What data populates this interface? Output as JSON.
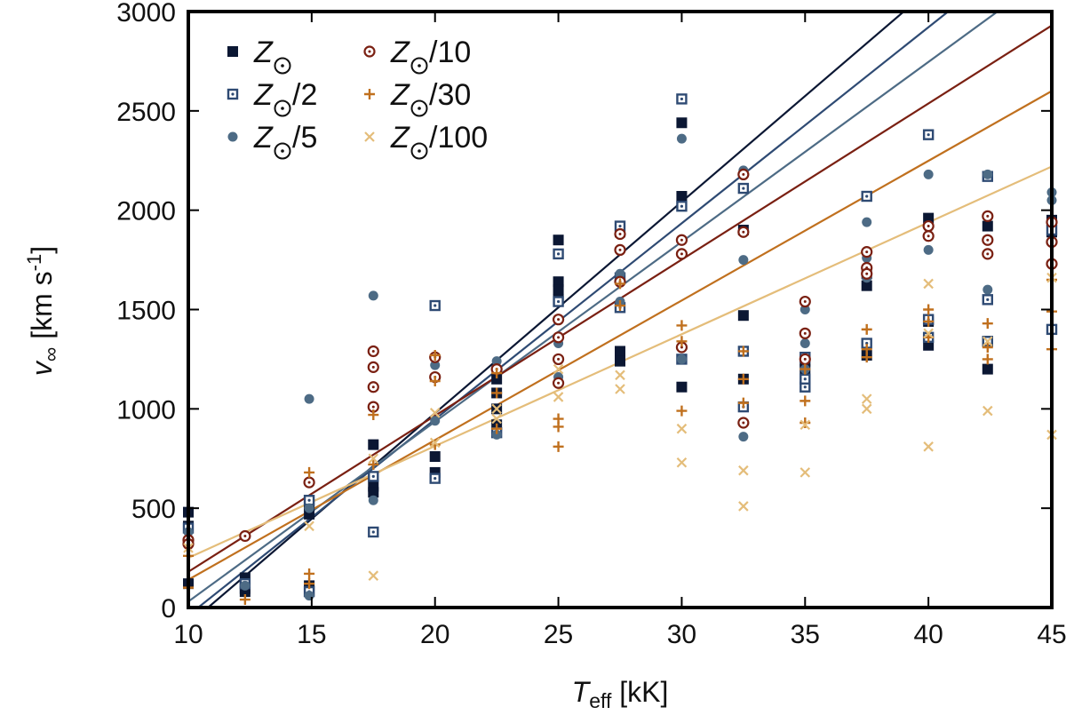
{
  "chart_data": {
    "type": "scatter",
    "title": "",
    "xlabel": {
      "main": "T",
      "sub": "eff",
      "unit": " [kK]"
    },
    "ylabel": {
      "main": "v",
      "sub": "∞",
      "unit": " [km s",
      "sup": "-1",
      "close": "]"
    },
    "xlim": [
      10,
      45
    ],
    "ylim": [
      0,
      3000
    ],
    "xticks": [
      10,
      15,
      20,
      25,
      30,
      35,
      40,
      45
    ],
    "yticks": [
      0,
      500,
      1000,
      1500,
      2000,
      2500,
      3000
    ],
    "grid": false,
    "legend_position": "top-left",
    "series": [
      {
        "name": "Z☉",
        "legend_main": "Z",
        "legend_suffix": "",
        "color": "#0b1733",
        "marker": "filled-square",
        "fit": {
          "x0": 10.8,
          "x1": 39.0,
          "y0": 0,
          "y1": 3000
        },
        "points": [
          [
            10,
            480
          ],
          [
            10,
            410
          ],
          [
            10,
            120
          ],
          [
            12.3,
            150
          ],
          [
            12.3,
            95
          ],
          [
            12.3,
            80
          ],
          [
            14.9,
            520
          ],
          [
            14.9,
            470
          ],
          [
            14.9,
            110
          ],
          [
            14.9,
            85
          ],
          [
            17.5,
            820
          ],
          [
            17.5,
            610
          ],
          [
            17.5,
            580
          ],
          [
            20,
            760
          ],
          [
            20,
            680
          ],
          [
            22.5,
            1150
          ],
          [
            22.5,
            1080
          ],
          [
            22.5,
            1000
          ],
          [
            22.5,
            920
          ],
          [
            25,
            1850
          ],
          [
            25,
            1640
          ],
          [
            25,
            1600
          ],
          [
            25,
            1550
          ],
          [
            27.5,
            1890
          ],
          [
            27.5,
            1290
          ],
          [
            27.5,
            1240
          ],
          [
            30,
            2440
          ],
          [
            30,
            2070
          ],
          [
            30,
            1110
          ],
          [
            32.5,
            1900
          ],
          [
            32.5,
            1470
          ],
          [
            32.5,
            1150
          ],
          [
            35,
            1240
          ],
          [
            35,
            1200
          ],
          [
            37.5,
            1680
          ],
          [
            37.5,
            1620
          ],
          [
            37.5,
            1270
          ],
          [
            40,
            1960
          ],
          [
            40,
            1440
          ],
          [
            40,
            1320
          ],
          [
            42.4,
            1920
          ],
          [
            42.4,
            1340
          ],
          [
            42.4,
            1200
          ],
          [
            45,
            1950
          ],
          [
            45,
            1890
          ]
        ]
      },
      {
        "name": "Z☉/2",
        "legend_main": "Z",
        "legend_suffix": "/2",
        "color": "#2e4a73",
        "marker": "dotted-square",
        "fit": {
          "x0": 10.4,
          "x1": 40.8,
          "y0": 0,
          "y1": 3000
        },
        "points": [
          [
            10,
            400
          ],
          [
            12.3,
            120
          ],
          [
            14.9,
            540
          ],
          [
            14.9,
            80
          ],
          [
            17.5,
            380
          ],
          [
            17.5,
            660
          ],
          [
            20,
            1520
          ],
          [
            20,
            650
          ],
          [
            22.5,
            880
          ],
          [
            25,
            1780
          ],
          [
            25,
            1540
          ],
          [
            27.5,
            1920
          ],
          [
            27.5,
            1660
          ],
          [
            27.5,
            1510
          ],
          [
            30,
            2560
          ],
          [
            30,
            2020
          ],
          [
            30,
            1250
          ],
          [
            32.5,
            2110
          ],
          [
            32.5,
            1290
          ],
          [
            32.5,
            1010
          ],
          [
            35,
            1110
          ],
          [
            35,
            1150
          ],
          [
            35,
            1260
          ],
          [
            37.5,
            2070
          ],
          [
            37.5,
            1330
          ],
          [
            40,
            2380
          ],
          [
            40,
            1450
          ],
          [
            40,
            1360
          ],
          [
            42.4,
            2170
          ],
          [
            42.4,
            1550
          ],
          [
            42.4,
            1340
          ],
          [
            45,
            1900
          ],
          [
            45,
            1400
          ]
        ]
      },
      {
        "name": "Z☉/5",
        "legend_main": "Z",
        "legend_suffix": "/5",
        "color": "#4d6b85",
        "marker": "filled-circle",
        "fit": {
          "x0": 10.0,
          "x1": 42.8,
          "y0": 30,
          "y1": 3000
        },
        "points": [
          [
            10,
            380
          ],
          [
            12.3,
            110
          ],
          [
            14.9,
            1050
          ],
          [
            14.9,
            500
          ],
          [
            14.9,
            60
          ],
          [
            17.5,
            1570
          ],
          [
            17.5,
            540
          ],
          [
            20,
            1220
          ],
          [
            20,
            940
          ],
          [
            22.5,
            1240
          ],
          [
            22.5,
            870
          ],
          [
            25,
            1330
          ],
          [
            25,
            1160
          ],
          [
            27.5,
            1680
          ],
          [
            27.5,
            1540
          ],
          [
            30,
            2360
          ],
          [
            30,
            1250
          ],
          [
            32.5,
            2200
          ],
          [
            32.5,
            1750
          ],
          [
            32.5,
            860
          ],
          [
            35,
            1500
          ],
          [
            35,
            1330
          ],
          [
            35,
            1200
          ],
          [
            37.5,
            1940
          ],
          [
            37.5,
            1760
          ],
          [
            37.5,
            1660
          ],
          [
            40,
            2180
          ],
          [
            40,
            1800
          ],
          [
            42.4,
            2180
          ],
          [
            42.4,
            1600
          ],
          [
            45,
            2090
          ],
          [
            45,
            2050
          ]
        ]
      },
      {
        "name": "Z☉/10",
        "legend_main": "Z",
        "legend_suffix": "/10",
        "color": "#7a2012",
        "marker": "ring-dot",
        "fit": {
          "x0": 10.0,
          "x1": 45.0,
          "y0": 180,
          "y1": 2930
        },
        "points": [
          [
            10,
            340
          ],
          [
            10,
            320
          ],
          [
            12.3,
            360
          ],
          [
            14.9,
            630
          ],
          [
            17.5,
            1290
          ],
          [
            17.5,
            1210
          ],
          [
            17.5,
            1110
          ],
          [
            17.5,
            1010
          ],
          [
            20,
            1260
          ],
          [
            20,
            1160
          ],
          [
            22.5,
            1200
          ],
          [
            25,
            1450
          ],
          [
            25,
            1360
          ],
          [
            25,
            1250
          ],
          [
            25,
            1130
          ],
          [
            27.5,
            1880
          ],
          [
            27.5,
            1800
          ],
          [
            27.5,
            1640
          ],
          [
            30,
            1850
          ],
          [
            30,
            1780
          ],
          [
            30,
            1310
          ],
          [
            32.5,
            2180
          ],
          [
            32.5,
            1890
          ],
          [
            32.5,
            930
          ],
          [
            35,
            1540
          ],
          [
            35,
            1380
          ],
          [
            35,
            1250
          ],
          [
            37.5,
            1790
          ],
          [
            37.5,
            1710
          ],
          [
            37.5,
            1680
          ],
          [
            40,
            1920
          ],
          [
            40,
            1870
          ],
          [
            42.4,
            1970
          ],
          [
            42.4,
            1850
          ],
          [
            42.4,
            1780
          ],
          [
            45,
            1940
          ],
          [
            45,
            1840
          ],
          [
            45,
            1730
          ]
        ]
      },
      {
        "name": "Z☉/30",
        "legend_main": "Z",
        "legend_suffix": "/30",
        "color": "#c0701e",
        "marker": "plus",
        "fit": {
          "x0": 10.0,
          "x1": 45.0,
          "y0": 140,
          "y1": 2600
        },
        "points": [
          [
            10,
            260
          ],
          [
            10,
            100
          ],
          [
            12.3,
            40
          ],
          [
            14.9,
            680
          ],
          [
            14.9,
            170
          ],
          [
            14.9,
            120
          ],
          [
            17.5,
            970
          ],
          [
            17.5,
            720
          ],
          [
            20,
            1270
          ],
          [
            20,
            1140
          ],
          [
            20,
            820
          ],
          [
            22.5,
            1180
          ],
          [
            22.5,
            1080
          ],
          [
            22.5,
            900
          ],
          [
            25,
            950
          ],
          [
            25,
            910
          ],
          [
            25,
            810
          ],
          [
            27.5,
            1630
          ],
          [
            27.5,
            1520
          ],
          [
            30,
            1420
          ],
          [
            30,
            1340
          ],
          [
            30,
            990
          ],
          [
            32.5,
            1290
          ],
          [
            32.5,
            1150
          ],
          [
            32.5,
            1030
          ],
          [
            35,
            1200
          ],
          [
            35,
            1040
          ],
          [
            35,
            930
          ],
          [
            37.5,
            1400
          ],
          [
            37.5,
            1300
          ],
          [
            37.5,
            1260
          ],
          [
            40,
            1500
          ],
          [
            40,
            1440
          ],
          [
            40,
            1360
          ],
          [
            42.4,
            1430
          ],
          [
            42.4,
            1310
          ],
          [
            42.4,
            1250
          ],
          [
            45,
            1650
          ],
          [
            45,
            1490
          ],
          [
            45,
            1300
          ]
        ]
      },
      {
        "name": "Z☉/100",
        "legend_main": "Z",
        "legend_suffix": "/100",
        "color": "#e4bd7a",
        "marker": "cross",
        "fit": {
          "x0": 10.0,
          "x1": 45.0,
          "y0": 250,
          "y1": 2220
        },
        "points": [
          [
            10,
            300
          ],
          [
            14.9,
            410
          ],
          [
            17.5,
            750
          ],
          [
            17.5,
            160
          ],
          [
            20,
            980
          ],
          [
            20,
            830
          ],
          [
            22.5,
            1000
          ],
          [
            22.5,
            950
          ],
          [
            25,
            1200
          ],
          [
            25,
            1060
          ],
          [
            27.5,
            1170
          ],
          [
            27.5,
            1100
          ],
          [
            30,
            900
          ],
          [
            30,
            730
          ],
          [
            32.5,
            690
          ],
          [
            32.5,
            510
          ],
          [
            35,
            920
          ],
          [
            35,
            680
          ],
          [
            37.5,
            1050
          ],
          [
            37.5,
            1000
          ],
          [
            40,
            1630
          ],
          [
            40,
            1380
          ],
          [
            40,
            810
          ],
          [
            42.4,
            1340
          ],
          [
            42.4,
            990
          ],
          [
            45,
            1660
          ],
          [
            45,
            870
          ]
        ]
      }
    ]
  }
}
